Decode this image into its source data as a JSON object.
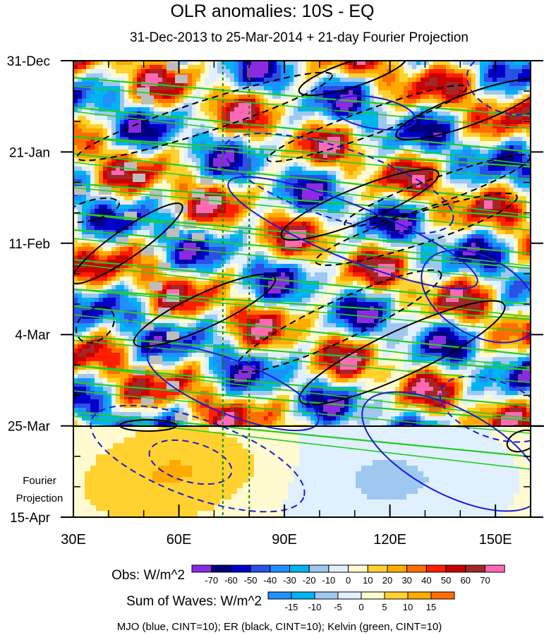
{
  "chart_data": {
    "type": "heatmap",
    "title": "OLR anomalies: 10S - EQ",
    "subtitle": "31-Dec-2013 to 25-Mar-2014 + 21-day Fourier Projection",
    "x_axis": {
      "range": [
        30,
        160
      ],
      "ticks": [
        30,
        60,
        90,
        120,
        150
      ],
      "tick_labels": [
        "30E",
        "60E",
        "90E",
        "120E",
        "150E"
      ]
    },
    "y_axis": {
      "range": [
        "31-Dec-2013",
        "15-Apr-2014"
      ],
      "tick_labels": [
        "31-Dec",
        "21-Jan",
        "11-Feb",
        "4-Mar",
        "25-Mar",
        "15-Apr"
      ]
    },
    "projection_label": "Fourier Projection",
    "reference_lines_dashed_green": [
      72.5,
      80
    ],
    "observed_end_line": "25-Mar",
    "obs_colorbar": {
      "label": "Obs: W/m^2",
      "levels": [
        "-70",
        "-60",
        "-50",
        "-40",
        "-30",
        "-20",
        "-10",
        "0",
        "10",
        "20",
        "30",
        "40",
        "50",
        "60",
        "70"
      ],
      "colors": [
        "#8a2be2",
        "#00007a",
        "#0000c8",
        "#2a50e6",
        "#1e90ff",
        "#00b4f0",
        "#9ec8f0",
        "#e0f0ff",
        "#fffad0",
        "#ffd230",
        "#ffaa00",
        "#ff6e00",
        "#ff1e00",
        "#c80000",
        "#a02828",
        "#ff69b4"
      ]
    },
    "waves_colorbar": {
      "label": "Sum of Waves: W/m^2",
      "levels": [
        "-15",
        "-10",
        "-5",
        "0",
        "5",
        "10",
        "15"
      ],
      "colors": [
        "#1e90ff",
        "#00b4f0",
        "#9ec8f0",
        "#e0f0ff",
        "#fffad0",
        "#ffd230",
        "#ffaa00",
        "#ff6e00"
      ]
    },
    "contours_caption": "MJO (blue, CINT=10); ER (black, CINT=10); Kelvin (green, CINT=10)",
    "contour_colors": {
      "mjo": "#1a1ad8",
      "er": "#000000",
      "kelvin": "#22cc22"
    }
  }
}
